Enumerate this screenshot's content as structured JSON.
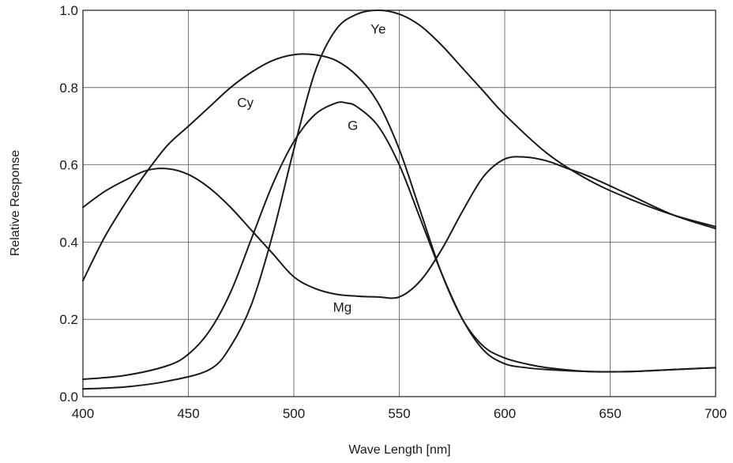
{
  "chart_data": {
    "type": "line",
    "title": "",
    "xlabel": "Wave Length [nm]",
    "ylabel": "Relative Response",
    "xlim": [
      400,
      700
    ],
    "ylim": [
      0.0,
      1.0
    ],
    "grid": true,
    "legend": "none",
    "x_ticks": [
      "400",
      "450",
      "500",
      "550",
      "600",
      "650",
      "700"
    ],
    "y_ticks": [
      "0.0",
      "0.2",
      "0.4",
      "0.6",
      "0.8",
      "1.0"
    ],
    "x_tick_values": [
      400,
      450,
      500,
      550,
      600,
      650,
      700
    ],
    "y_tick_values": [
      0.0,
      0.2,
      0.4,
      0.6,
      0.8,
      1.0
    ],
    "series": [
      {
        "name": "Ye",
        "x": [
          400,
          420,
          440,
          460,
          470,
          480,
          490,
          500,
          510,
          520,
          530,
          540,
          550,
          560,
          570,
          580,
          590,
          600,
          620,
          640,
          660,
          680,
          700
        ],
        "y": [
          0.02,
          0.025,
          0.04,
          0.07,
          0.13,
          0.24,
          0.42,
          0.64,
          0.84,
          0.95,
          0.99,
          1.0,
          0.99,
          0.96,
          0.91,
          0.85,
          0.79,
          0.73,
          0.63,
          0.56,
          0.51,
          0.47,
          0.44
        ]
      },
      {
        "name": "Cy",
        "x": [
          400,
          410,
          420,
          430,
          440,
          450,
          460,
          470,
          480,
          490,
          500,
          510,
          520,
          530,
          540,
          550,
          560,
          570,
          580,
          590,
          600,
          610,
          620,
          640,
          660,
          680,
          700
        ],
        "y": [
          0.3,
          0.41,
          0.5,
          0.58,
          0.65,
          0.7,
          0.75,
          0.8,
          0.84,
          0.87,
          0.885,
          0.885,
          0.87,
          0.83,
          0.76,
          0.64,
          0.48,
          0.32,
          0.2,
          0.13,
          0.1,
          0.085,
          0.075,
          0.065,
          0.065,
          0.07,
          0.075
        ]
      },
      {
        "name": "G",
        "x": [
          400,
          420,
          440,
          450,
          460,
          470,
          480,
          490,
          500,
          510,
          520,
          525,
          530,
          540,
          550,
          560,
          570,
          580,
          590,
          600,
          610,
          620,
          640,
          660,
          680,
          700
        ],
        "y": [
          0.045,
          0.055,
          0.08,
          0.11,
          0.17,
          0.27,
          0.41,
          0.55,
          0.66,
          0.73,
          0.76,
          0.76,
          0.75,
          0.7,
          0.6,
          0.46,
          0.32,
          0.2,
          0.12,
          0.085,
          0.075,
          0.07,
          0.065,
          0.065,
          0.07,
          0.075
        ]
      },
      {
        "name": "Mg",
        "x": [
          400,
          410,
          420,
          430,
          440,
          450,
          460,
          470,
          480,
          490,
          500,
          510,
          520,
          530,
          540,
          550,
          560,
          570,
          580,
          590,
          600,
          610,
          620,
          630,
          640,
          660,
          680,
          700
        ],
        "y": [
          0.49,
          0.53,
          0.56,
          0.585,
          0.59,
          0.575,
          0.54,
          0.49,
          0.43,
          0.37,
          0.31,
          0.28,
          0.265,
          0.26,
          0.258,
          0.258,
          0.3,
          0.38,
          0.48,
          0.57,
          0.615,
          0.62,
          0.61,
          0.59,
          0.57,
          0.52,
          0.47,
          0.435
        ]
      }
    ],
    "annotations": [
      {
        "text": "Ye",
        "x": 540,
        "y": 0.94
      },
      {
        "text": "Cy",
        "x": 477,
        "y": 0.75
      },
      {
        "text": "G",
        "x": 528,
        "y": 0.69
      },
      {
        "text": "Mg",
        "x": 523,
        "y": 0.22
      }
    ]
  }
}
